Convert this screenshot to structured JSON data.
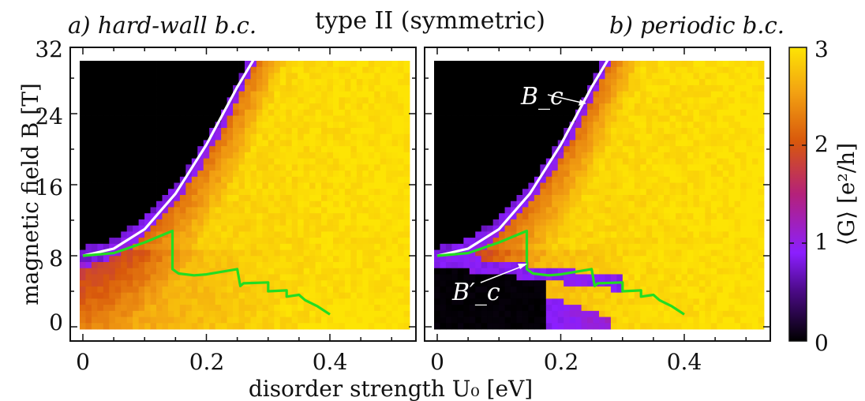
{
  "title": "type II (symmetric)",
  "panels": [
    {
      "label": "a) hard-wall b.c."
    },
    {
      "label": "b) periodic b.c."
    }
  ],
  "axes": {
    "xlabel": "disorder strength U₀ [eV]",
    "ylabel": "magnetic field B [T]",
    "xticks": [
      "0",
      "0.2",
      "0.4"
    ],
    "yticks": [
      "0",
      "8",
      "16",
      "24",
      "32"
    ]
  },
  "colorbar": {
    "label": "⟨G⟩ [e²/h]",
    "ticks": [
      "0",
      "1",
      "2",
      "3"
    ],
    "range": [
      0,
      3
    ],
    "stops": [
      "#000000",
      "#4b0a86",
      "#8b1fff",
      "#b4217a",
      "#d8580c",
      "#f3a312",
      "#fde404"
    ]
  },
  "annotations": {
    "Bc": "B_c",
    "Bc_prime": "B′_c"
  },
  "chart_data": [
    {
      "type": "heatmap",
      "panel": "a) hard-wall b.c.",
      "xlabel": "disorder strength U₀ [eV]",
      "ylabel": "magnetic field B [T]",
      "xlim": [
        0,
        0.5
      ],
      "ylim": [
        -1,
        32
      ],
      "color_range": [
        0,
        3
      ],
      "series": [
        {
          "color": "#ffffff",
          "x": [
            0.0,
            0.05,
            0.1,
            0.15,
            0.2,
            0.25,
            0.28
          ],
          "y": [
            8.0,
            8.8,
            11.0,
            15.0,
            20.5,
            27.0,
            30.5
          ]
        },
        {
          "color": "#22dd22",
          "x": [
            0.0,
            0.05,
            0.1,
            0.145,
            0.145,
            0.155,
            0.18,
            0.2,
            0.25,
            0.255,
            0.26,
            0.3,
            0.3,
            0.33,
            0.33,
            0.35,
            0.36,
            0.38,
            0.4
          ],
          "y": [
            8.0,
            8.3,
            9.5,
            10.8,
            6.5,
            6.0,
            5.8,
            5.9,
            6.5,
            4.6,
            4.9,
            5.0,
            4.0,
            4.1,
            3.4,
            3.6,
            3.0,
            2.3,
            1.4
          ]
        }
      ]
    },
    {
      "type": "heatmap",
      "panel": "b) periodic b.c.",
      "xlabel": "disorder strength U₀ [eV]",
      "ylabel": "magnetic field B [T]",
      "xlim": [
        0,
        0.5
      ],
      "ylim": [
        -1,
        32
      ],
      "color_range": [
        0,
        3
      ],
      "series": [
        {
          "color": "#ffffff",
          "x": [
            0.0,
            0.05,
            0.1,
            0.15,
            0.2,
            0.25,
            0.28
          ],
          "y": [
            8.0,
            8.8,
            11.0,
            15.0,
            20.5,
            27.0,
            30.5
          ]
        },
        {
          "color": "#22dd22",
          "x": [
            0.0,
            0.05,
            0.1,
            0.145,
            0.145,
            0.155,
            0.18,
            0.2,
            0.25,
            0.255,
            0.26,
            0.3,
            0.3,
            0.33,
            0.33,
            0.35,
            0.36,
            0.38,
            0.4
          ],
          "y": [
            8.0,
            8.3,
            9.5,
            10.8,
            6.5,
            6.0,
            5.8,
            5.9,
            6.5,
            4.6,
            4.9,
            5.0,
            4.0,
            4.1,
            3.4,
            3.6,
            3.0,
            2.3,
            1.4
          ]
        }
      ]
    }
  ]
}
